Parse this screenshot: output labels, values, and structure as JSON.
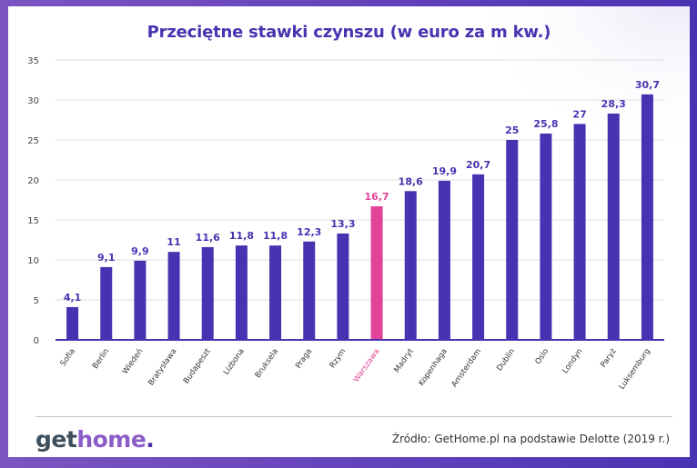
{
  "header": {
    "title": "Przeciętne stawki czynszu (w euro za m kw.)"
  },
  "footer": {
    "logo": {
      "part1": "get",
      "part2": "home",
      "part3": "."
    },
    "source": "Źródło: GetHome.pl na podstawie Delotte (2019 r.)"
  },
  "colors": {
    "bar": "#4733b1",
    "highlight": "#e2439a",
    "frame": "#6a47bd",
    "title": "#4a32b0"
  },
  "chart_data": {
    "type": "bar",
    "title": "Przeciętne stawki czynszu (w euro za m kw.)",
    "xlabel": "",
    "ylabel": "",
    "ylim": [
      0,
      35
    ],
    "yticks": [
      "0",
      "5",
      "10",
      "15",
      "20",
      "25",
      "30",
      "35"
    ],
    "grid": true,
    "legend": "none",
    "highlight_category": "Warszawa",
    "categories": [
      "Sofia",
      "Berlin",
      "Wiedeń",
      "Bratysława",
      "Budapeszt",
      "Lizbona",
      "Bruksela",
      "Praga",
      "Rzym",
      "Warszawa",
      "Madryt",
      "Kopenhaga",
      "Amsterdam",
      "Dublin",
      "Oslo",
      "Londyn",
      "Paryż",
      "Luksemburg"
    ],
    "values": [
      4.1,
      9.1,
      9.9,
      11,
      11.6,
      11.8,
      11.8,
      12.3,
      13.3,
      16.7,
      18.6,
      19.9,
      20.7,
      25,
      25.8,
      27,
      28.3,
      30.7
    ],
    "data_labels": [
      "4,1",
      "9,1",
      "9,9",
      "11",
      "11,6",
      "11,8",
      "11,8",
      "12,3",
      "13,3",
      "16,7",
      "18,6",
      "19,9",
      "20,7",
      "25",
      "25,8",
      "27",
      "28,3",
      "30,7"
    ]
  }
}
